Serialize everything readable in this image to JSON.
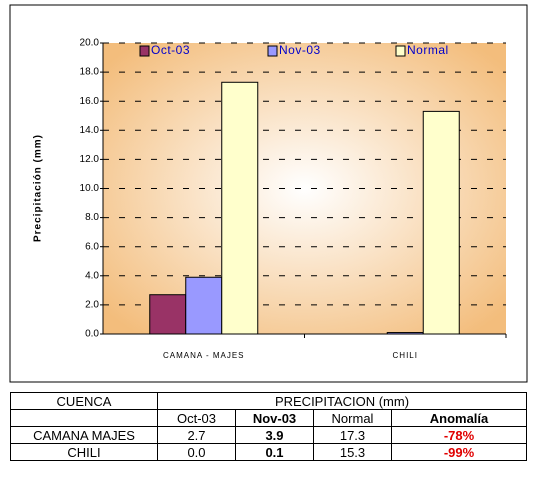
{
  "chart_data": {
    "type": "bar",
    "y_label": "Precipitación (mm)",
    "categories": [
      "CAMANA - MAJES",
      "CHILI"
    ],
    "series": [
      {
        "name": "Oct-03",
        "color": "#993366",
        "values": [
          2.7,
          0.0
        ]
      },
      {
        "name": "Nov-03",
        "color": "#9999ff",
        "values": [
          3.9,
          0.1
        ]
      },
      {
        "name": "Normal",
        "color": "#ffffcc",
        "values": [
          17.3,
          15.3
        ]
      }
    ],
    "ylim": [
      0,
      20
    ],
    "yticks": [
      {
        "value": 0,
        "label": "0.0"
      },
      {
        "value": 2,
        "label": "2.0"
      },
      {
        "value": 4,
        "label": "4.0"
      },
      {
        "value": 6,
        "label": "6.0"
      },
      {
        "value": 8,
        "label": "8.0"
      },
      {
        "value": 10,
        "label": "10.0"
      },
      {
        "value": 12,
        "label": "12.0"
      },
      {
        "value": 14,
        "label": "14.0"
      },
      {
        "value": 16,
        "label": "16.0"
      },
      {
        "value": 18,
        "label": "18.0"
      },
      {
        "value": 20,
        "label": "20.0"
      }
    ],
    "grid": true,
    "legend": "top"
  },
  "table": {
    "header": [
      "CUENCA",
      "PRECIPITACION (mm)"
    ],
    "subheader": [
      "Oct-03",
      "Nov-03",
      "Normal",
      "Anomalía"
    ],
    "rows": [
      [
        "CAMANA MAJES",
        "2.7",
        "3.9",
        "17.3",
        "-78%"
      ],
      [
        "CHILI",
        "0.0",
        "0.1",
        "15.3",
        "-99%"
      ]
    ]
  }
}
